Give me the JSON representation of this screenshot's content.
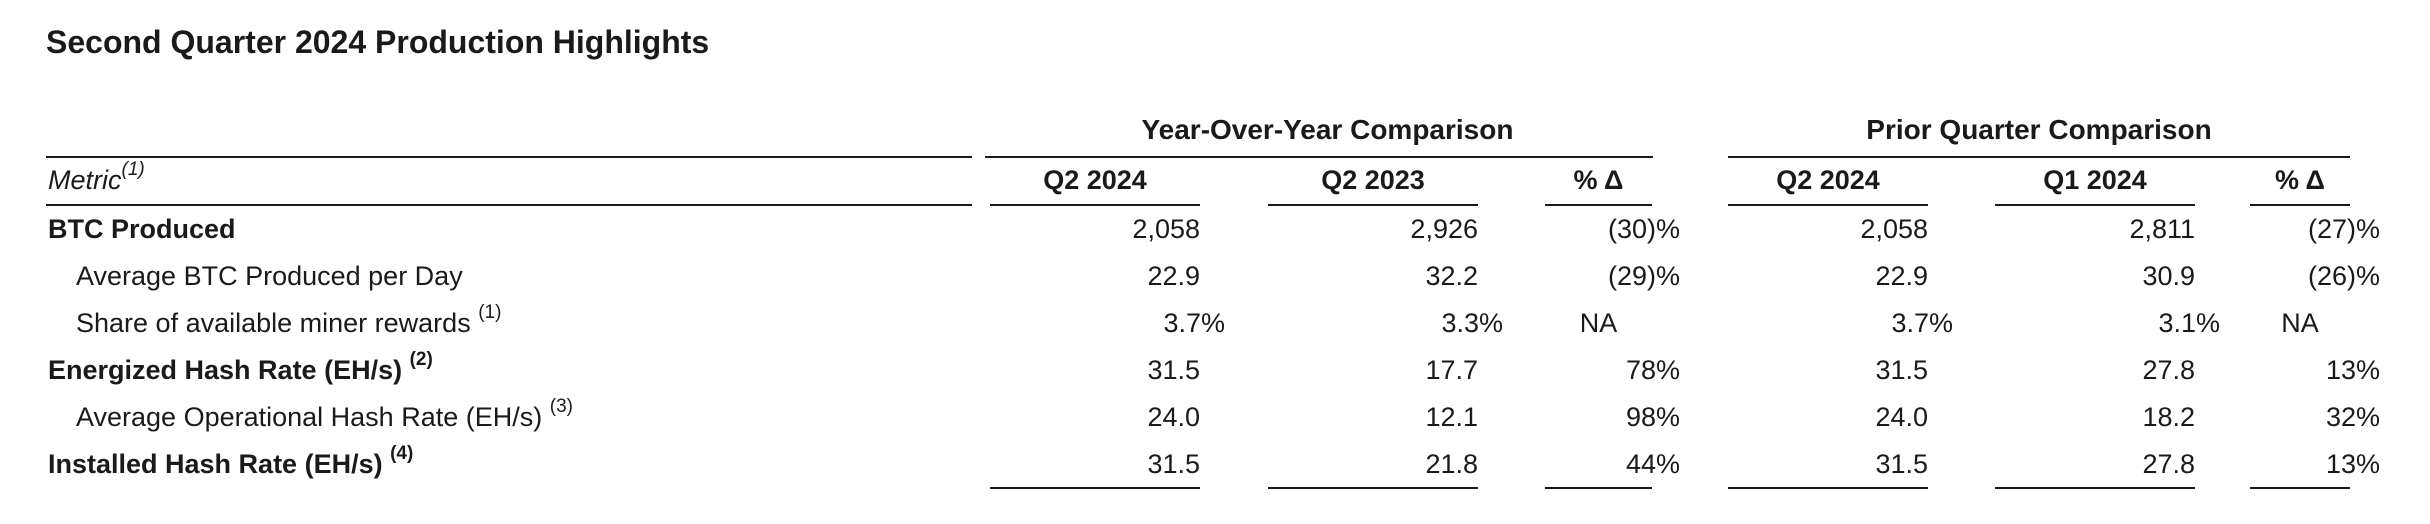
{
  "title": "Second Quarter 2024 Production Highlights",
  "groups": {
    "yoy": "Year-Over-Year Comparison",
    "qoq": "Prior Quarter Comparison"
  },
  "headers": {
    "metric": "Metric",
    "metric_sup": "(1)",
    "c1": "Q2 2024",
    "c2": "Q2 2023",
    "c3": "% Δ",
    "c4": "Q2 2024",
    "c5": "Q1 2024",
    "c6": "% Δ"
  },
  "rows": [
    {
      "label": "BTC Produced",
      "sup": "",
      "c1": "2,058",
      "c2": "2,926",
      "c3": "(30)%",
      "c4": "2,058",
      "c5": "2,811",
      "c6": "(27)%"
    },
    {
      "label": "Average BTC Produced per Day",
      "sup": "",
      "c1": "22.9",
      "c2": "32.2",
      "c3": "(29)%",
      "c4": "22.9",
      "c5": "30.9",
      "c6": "(26)%"
    },
    {
      "label": "Share of available miner rewards",
      "sup": "(1)",
      "c1": "3.7%",
      "c2": "3.3%",
      "c3": "NA",
      "c4": "3.7%",
      "c5": "3.1%",
      "c6": "NA"
    },
    {
      "label": "Energized Hash Rate (EH/s)",
      "sup": "(2)",
      "c1": "31.5",
      "c2": "17.7",
      "c3": "78%",
      "c4": "31.5",
      "c5": "27.8",
      "c6": "13%"
    },
    {
      "label": "Average Operational Hash Rate (EH/s)",
      "sup": "(3)",
      "c1": "24.0",
      "c2": "12.1",
      "c3": "98%",
      "c4": "24.0",
      "c5": "18.2",
      "c6": "32%"
    },
    {
      "label": "Installed Hash Rate (EH/s)",
      "sup": "(4)",
      "c1": "31.5",
      "c2": "21.8",
      "c3": "44%",
      "c4": "31.5",
      "c5": "27.8",
      "c6": "13%"
    }
  ]
}
